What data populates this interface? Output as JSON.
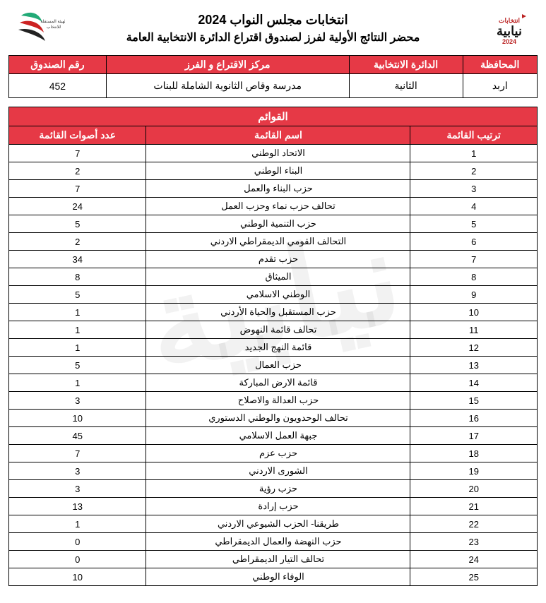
{
  "header": {
    "title1": "انتخابات مجلس النواب 2024",
    "title2": "محضر النتائج الأولية لفرز لصندوق اقتراع الدائرة الانتخابية العامة"
  },
  "info": {
    "headers": {
      "governorate": "المحافظة",
      "district": "الدائرة الانتخابية",
      "center": "مركز الاقتراع و الفرز",
      "box": "رقم الصندوق"
    },
    "values": {
      "governorate": "اربد",
      "district": "الثانية",
      "center": "مدرسة وقاص الثانوية الشاملة  للبنات",
      "box": "452"
    }
  },
  "lists": {
    "section_title": "القوائم",
    "headers": {
      "rank": "ترتيب القائمة",
      "name": "اسم القائمة",
      "votes": "عدد أصوات القائمة"
    },
    "rows": [
      {
        "rank": "1",
        "name": "الاتحاد الوطني",
        "votes": "7"
      },
      {
        "rank": "2",
        "name": "البناء الوطني",
        "votes": "2"
      },
      {
        "rank": "3",
        "name": "حزب البناء والعمل",
        "votes": "7"
      },
      {
        "rank": "4",
        "name": "تحالف حزب نماء وحزب العمل",
        "votes": "24"
      },
      {
        "rank": "5",
        "name": "حزب التنمية الوطني",
        "votes": "5"
      },
      {
        "rank": "6",
        "name": "التحالف القومي الديمقراطي الاردني",
        "votes": "2"
      },
      {
        "rank": "7",
        "name": "حزب تقدم",
        "votes": "34"
      },
      {
        "rank": "8",
        "name": "الميثاق",
        "votes": "8"
      },
      {
        "rank": "9",
        "name": "الوطني الاسلامي",
        "votes": "5"
      },
      {
        "rank": "10",
        "name": "حزب المستقبل والحياة الأردني",
        "votes": "1"
      },
      {
        "rank": "11",
        "name": "تحالف قائمة النهوض",
        "votes": "1"
      },
      {
        "rank": "12",
        "name": "قائمة النهج الجديد",
        "votes": "1"
      },
      {
        "rank": "13",
        "name": "حزب العمال",
        "votes": "5"
      },
      {
        "rank": "14",
        "name": "قائمة الارض المباركة",
        "votes": "1"
      },
      {
        "rank": "15",
        "name": "حزب العدالة والاصلاح",
        "votes": "3"
      },
      {
        "rank": "16",
        "name": "تحالف الوحدويون والوطني الدستوري",
        "votes": "10"
      },
      {
        "rank": "17",
        "name": "جبهة العمل الاسلامي",
        "votes": "45"
      },
      {
        "rank": "18",
        "name": "حزب عزم",
        "votes": "7"
      },
      {
        "rank": "19",
        "name": "الشورى الاردني",
        "votes": "3"
      },
      {
        "rank": "20",
        "name": "حزب رؤية",
        "votes": "3"
      },
      {
        "rank": "21",
        "name": "حزب إرادة",
        "votes": "13"
      },
      {
        "rank": "22",
        "name": "طريقنا- الحزب الشيوعي الاردني",
        "votes": "1"
      },
      {
        "rank": "23",
        "name": "حزب النهضة والعمال الديمقراطي",
        "votes": "0"
      },
      {
        "rank": "24",
        "name": "تحالف التيار الديمقراطي",
        "votes": "0"
      },
      {
        "rank": "25",
        "name": "الوفاء الوطني",
        "votes": "10"
      }
    ]
  },
  "style": {
    "header_bg": "#e63946",
    "header_fg": "#ffffff",
    "border_color": "#000000",
    "watermark_text": "نيابية"
  }
}
